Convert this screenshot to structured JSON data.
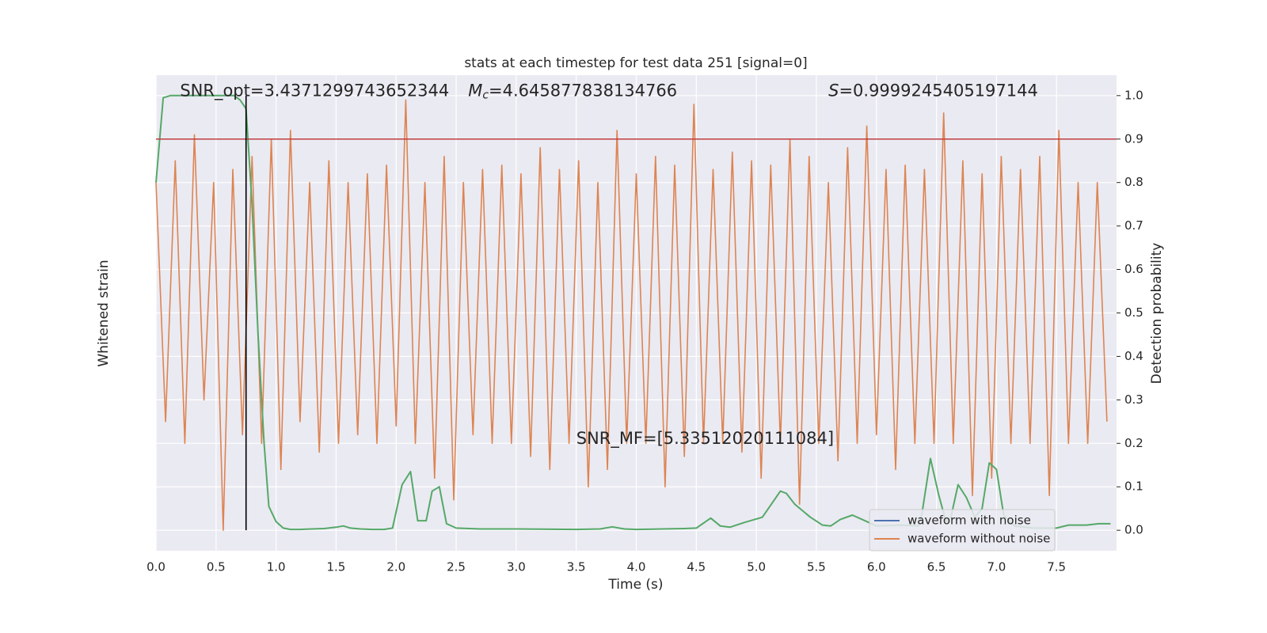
{
  "chart_data": {
    "type": "line",
    "title": "stats at each timestep for test data 251 [signal=0]",
    "xlabel": "Time (s)",
    "ylabel": "Whitened strain",
    "y2label": "Detection probability",
    "xlim": [
      0,
      8
    ],
    "ylim": [
      -0.547,
      0.547
    ],
    "y2lim": [
      -0.047,
      1.047
    ],
    "xticks": [
      {
        "value": 0,
        "label": "0.0"
      },
      {
        "value": 0.5,
        "label": "0.5"
      },
      {
        "value": 1,
        "label": "1.0"
      },
      {
        "value": 1.5,
        "label": "1.5"
      },
      {
        "value": 2,
        "label": "2.0"
      },
      {
        "value": 2.5,
        "label": "2.5"
      },
      {
        "value": 3,
        "label": "3.0"
      },
      {
        "value": 3.5,
        "label": "3.5"
      },
      {
        "value": 4,
        "label": "4.0"
      },
      {
        "value": 4.5,
        "label": "4.5"
      },
      {
        "value": 5,
        "label": "5.0"
      },
      {
        "value": 5.5,
        "label": "5.5"
      },
      {
        "value": 6,
        "label": "6.0"
      },
      {
        "value": 6.5,
        "label": "6.5"
      },
      {
        "value": 7,
        "label": "7.0"
      },
      {
        "value": 7.5,
        "label": "7.5"
      }
    ],
    "y2ticks": [
      {
        "value": 0,
        "label": "0.0"
      },
      {
        "value": 0.1,
        "label": "0.1"
      },
      {
        "value": 0.2,
        "label": "0.2"
      },
      {
        "value": 0.3,
        "label": "0.3"
      },
      {
        "value": 0.4,
        "label": "0.4"
      },
      {
        "value": 0.5,
        "label": "0.5"
      },
      {
        "value": 0.6,
        "label": "0.6"
      },
      {
        "value": 0.7,
        "label": "0.7"
      },
      {
        "value": 0.8,
        "label": "0.8"
      },
      {
        "value": 0.9,
        "label": "0.9"
      },
      {
        "value": 1,
        "label": "1.0"
      }
    ],
    "grid": true,
    "threshold": {
      "value": 0.9,
      "color": "#c03d3e"
    },
    "marker_time": {
      "value": 0.75,
      "color": "#000000"
    },
    "annotations": [
      {
        "text": "SNR_opt=3.4371299743652344",
        "x": 0.2,
        "y2": 1.01
      },
      {
        "symbol": "M",
        "sub": "c",
        "text": "=4.645877838134766",
        "x": 2.6,
        "y2": 1.01
      },
      {
        "symbol": "S",
        "text": "=0.9999245405197144",
        "x": 5.6,
        "y2": 1.01
      },
      {
        "text": "SNR_MF=[5.33512020111084]",
        "x": 3.5,
        "y2": 0.21
      }
    ],
    "legend": {
      "loc": "lower right",
      "entries": [
        {
          "name": "waveform with noise",
          "color": "#4c72b0"
        },
        {
          "name": "waveform without noise",
          "color": "#dd8452"
        }
      ]
    },
    "series": [
      {
        "name": "waveform without noise",
        "color": "#dd8452",
        "axis": "y",
        "x": [
          0,
          0.08,
          0.16,
          0.24,
          0.32,
          0.4,
          0.48,
          0.56,
          0.64,
          0.72,
          0.8,
          0.88,
          0.96,
          1.04,
          1.12,
          1.2,
          1.28,
          1.36,
          1.44,
          1.52,
          1.6,
          1.68,
          1.76,
          1.84,
          1.92,
          2,
          2.08,
          2.16,
          2.24,
          2.32,
          2.4,
          2.48,
          2.56,
          2.64,
          2.72,
          2.8,
          2.88,
          2.96,
          3.04,
          3.12,
          3.2,
          3.28,
          3.36,
          3.44,
          3.52,
          3.6,
          3.68,
          3.76,
          3.84,
          3.92,
          4,
          4.08,
          4.16,
          4.24,
          4.32,
          4.4,
          4.48,
          4.56,
          4.64,
          4.72,
          4.8,
          4.88,
          4.96,
          5.04,
          5.12,
          5.2,
          5.28,
          5.36,
          5.44,
          5.52,
          5.6,
          5.68,
          5.76,
          5.84,
          5.92,
          6,
          6.08,
          6.16,
          6.24,
          6.32,
          6.4,
          6.48,
          6.56,
          6.64,
          6.72,
          6.8,
          6.88,
          6.96,
          7.04,
          7.12,
          7.2,
          7.28,
          7.36,
          7.44,
          7.52,
          7.6,
          7.68,
          7.76,
          7.84,
          7.92
        ],
        "values": [
          0.3,
          -0.25,
          0.35,
          -0.3,
          0.41,
          -0.2,
          0.3,
          -0.5,
          0.33,
          -0.28,
          0.36,
          -0.3,
          0.4,
          -0.36,
          0.42,
          -0.25,
          0.3,
          -0.32,
          0.35,
          -0.3,
          0.3,
          -0.28,
          0.32,
          -0.3,
          0.34,
          -0.26,
          0.49,
          -0.3,
          0.3,
          -0.38,
          0.36,
          -0.43,
          0.3,
          -0.28,
          0.33,
          -0.3,
          0.34,
          -0.3,
          0.32,
          -0.33,
          0.38,
          -0.36,
          0.33,
          -0.3,
          0.35,
          -0.4,
          0.3,
          -0.36,
          0.42,
          -0.3,
          0.32,
          -0.3,
          0.36,
          -0.4,
          0.34,
          -0.33,
          0.48,
          -0.3,
          0.33,
          -0.3,
          0.37,
          -0.32,
          0.35,
          -0.38,
          0.34,
          -0.3,
          0.4,
          -0.44,
          0.36,
          -0.3,
          0.3,
          -0.34,
          0.38,
          -0.3,
          0.43,
          -0.28,
          0.33,
          -0.36,
          0.34,
          -0.3,
          0.33,
          -0.3,
          0.46,
          -0.3,
          0.35,
          -0.42,
          0.32,
          -0.38,
          0.36,
          -0.3,
          0.33,
          -0.3,
          0.36,
          -0.42,
          0.42,
          -0.3,
          0.3,
          -0.3,
          0.3,
          -0.25
        ]
      },
      {
        "name": "detection probability",
        "color": "#55a868",
        "axis": "y2",
        "x": [
          0,
          0.06,
          0.12,
          0.2,
          0.3,
          0.4,
          0.5,
          0.6,
          0.65,
          0.7,
          0.75,
          0.8,
          0.85,
          0.9,
          0.94,
          1,
          1.06,
          1.12,
          1.2,
          1.3,
          1.4,
          1.5,
          1.56,
          1.62,
          1.7,
          1.8,
          1.9,
          1.97,
          2.05,
          2.12,
          2.18,
          2.25,
          2.3,
          2.36,
          2.42,
          2.5,
          2.7,
          3,
          3.5,
          3.7,
          3.8,
          3.9,
          4,
          4.4,
          4.5,
          4.62,
          4.7,
          4.78,
          4.9,
          5.05,
          5.2,
          5.25,
          5.32,
          5.45,
          5.55,
          5.62,
          5.7,
          5.8,
          5.88,
          6,
          6.2,
          6.35,
          6.38,
          6.45,
          6.52,
          6.58,
          6.62,
          6.68,
          6.75,
          6.82,
          6.88,
          6.94,
          7,
          7.06,
          7.15,
          7.3,
          7.5,
          7.6,
          7.75,
          7.85,
          7.95
        ],
        "values": [
          0.8,
          0.995,
          1,
          1,
          1,
          1,
          1,
          1,
          1,
          0.99,
          0.97,
          0.75,
          0.45,
          0.2,
          0.055,
          0.02,
          0.005,
          0.002,
          0.002,
          0.003,
          0.004,
          0.007,
          0.01,
          0.005,
          0.003,
          0.002,
          0.002,
          0.005,
          0.105,
          0.135,
          0.022,
          0.022,
          0.09,
          0.1,
          0.015,
          0.005,
          0.003,
          0.003,
          0.002,
          0.003,
          0.008,
          0.003,
          0.002,
          0.004,
          0.005,
          0.028,
          0.01,
          0.007,
          0.018,
          0.03,
          0.09,
          0.085,
          0.06,
          0.03,
          0.012,
          0.01,
          0.025,
          0.035,
          0.025,
          0.01,
          0.012,
          0.01,
          0.04,
          0.165,
          0.08,
          0.02,
          0.03,
          0.105,
          0.075,
          0.03,
          0.05,
          0.155,
          0.14,
          0.035,
          0.01,
          0.005,
          0.005,
          0.012,
          0.012,
          0.015,
          0.015
        ]
      }
    ]
  }
}
